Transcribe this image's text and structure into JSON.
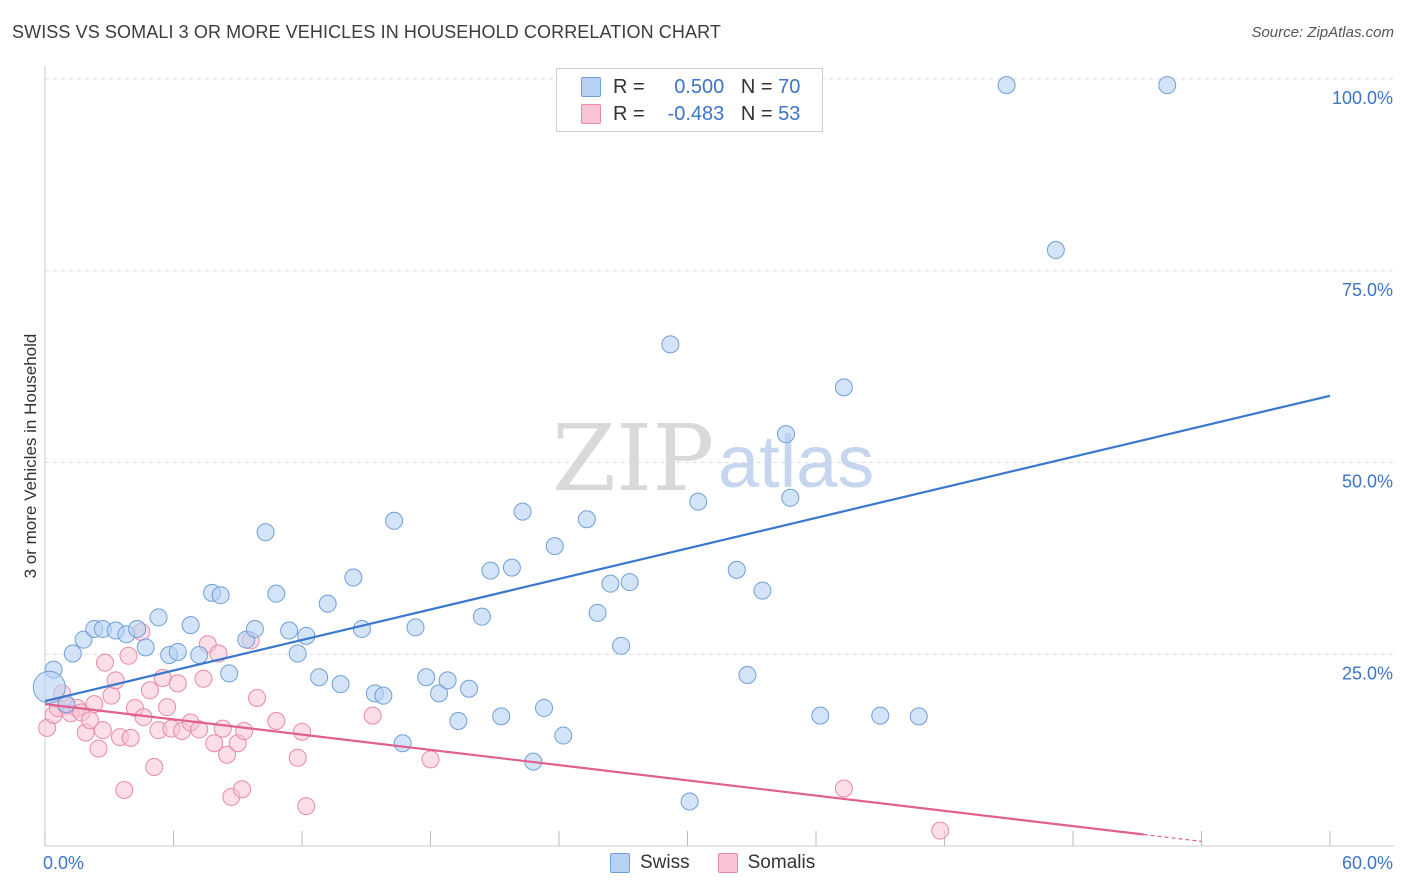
{
  "header": {
    "title": "SWISS VS SOMALI 3 OR MORE VEHICLES IN HOUSEHOLD CORRELATION CHART",
    "source": "Source: ZipAtlas.com"
  },
  "legend": {
    "rows": [
      {
        "r_label": "R =",
        "r_value": "0.500",
        "n_label": "N =",
        "n_value": "70"
      },
      {
        "r_label": "R =",
        "r_value": "-0.483",
        "n_label": "N =",
        "n_value": "53"
      }
    ],
    "bottom": [
      "Swiss",
      "Somalis"
    ]
  },
  "watermark": {
    "zip": "ZIP",
    "atlas": "atlas"
  },
  "colors": {
    "swiss_fill": "#b8d2f3",
    "swiss_stroke": "#6f9fd9",
    "swiss_line": "#3a78cf",
    "somali_fill": "#f8c3d2",
    "somali_stroke": "#e98aa8",
    "somali_line": "#e0608e",
    "tick": "#3b74c9",
    "grid": "#dddddd"
  },
  "chart_data": {
    "type": "scatter",
    "title": "SWISS VS SOMALI 3 OR MORE VEHICLES IN HOUSEHOLD CORRELATION CHART",
    "xlabel": "",
    "ylabel": "3 or more Vehicles in Household",
    "xlim": [
      0,
      60
    ],
    "ylim": [
      0,
      100
    ],
    "x_tick_labels": [
      "0.0%",
      "60.0%"
    ],
    "y_ticks": [
      25,
      50,
      75,
      100
    ],
    "y_tick_labels": [
      "25.0%",
      "50.0%",
      "75.0%",
      "100.0%"
    ],
    "grid": true,
    "legend_placement": "top-center",
    "series": [
      {
        "name": "Swiss",
        "r": 0.5,
        "n": 70,
        "trend": {
          "x": [
            0,
            60
          ],
          "y": [
            18.9,
            58.7
          ]
        },
        "points": [
          [
            0.4,
            23.0
          ],
          [
            1.3,
            25.1
          ],
          [
            1.8,
            26.9
          ],
          [
            2.3,
            28.3
          ],
          [
            2.7,
            28.3
          ],
          [
            3.3,
            28.1
          ],
          [
            3.8,
            27.6
          ],
          [
            4.3,
            28.3
          ],
          [
            4.7,
            25.9
          ],
          [
            5.3,
            29.8
          ],
          [
            5.8,
            24.9
          ],
          [
            6.2,
            25.3
          ],
          [
            6.8,
            28.8
          ],
          [
            7.2,
            24.9
          ],
          [
            7.8,
            33.0
          ],
          [
            8.2,
            32.7
          ],
          [
            8.6,
            22.5
          ],
          [
            9.4,
            26.9
          ],
          [
            9.8,
            28.3
          ],
          [
            10.3,
            40.9
          ],
          [
            10.8,
            32.9
          ],
          [
            11.4,
            28.1
          ],
          [
            11.8,
            25.1
          ],
          [
            12.2,
            27.4
          ],
          [
            12.8,
            22.0
          ],
          [
            13.2,
            31.6
          ],
          [
            13.8,
            21.1
          ],
          [
            14.4,
            35.0
          ],
          [
            14.8,
            28.3
          ],
          [
            15.4,
            19.9
          ],
          [
            15.8,
            19.6
          ],
          [
            16.3,
            42.4
          ],
          [
            16.7,
            13.4
          ],
          [
            17.3,
            28.5
          ],
          [
            17.8,
            22.0
          ],
          [
            18.4,
            19.9
          ],
          [
            18.8,
            21.6
          ],
          [
            19.3,
            16.3
          ],
          [
            19.8,
            20.5
          ],
          [
            20.4,
            29.9
          ],
          [
            20.8,
            35.9
          ],
          [
            21.3,
            16.9
          ],
          [
            21.8,
            36.3
          ],
          [
            22.3,
            43.6
          ],
          [
            22.8,
            11.0
          ],
          [
            23.3,
            18.0
          ],
          [
            23.8,
            39.1
          ],
          [
            24.2,
            14.4
          ],
          [
            25.3,
            42.6
          ],
          [
            25.8,
            30.4
          ],
          [
            26.4,
            34.2
          ],
          [
            26.9,
            26.1
          ],
          [
            27.3,
            34.4
          ],
          [
            29.2,
            65.4
          ],
          [
            30.1,
            5.8
          ],
          [
            30.5,
            44.9
          ],
          [
            32.3,
            36.0
          ],
          [
            32.8,
            22.3
          ],
          [
            33.5,
            33.3
          ],
          [
            34.6,
            53.7
          ],
          [
            34.8,
            45.4
          ],
          [
            36.2,
            17.0
          ],
          [
            37.3,
            59.8
          ],
          [
            39.0,
            17.0
          ],
          [
            40.8,
            16.9
          ],
          [
            44.9,
            99.2
          ],
          [
            47.2,
            77.7
          ],
          [
            52.4,
            99.2
          ],
          [
            0.2,
            20.7
          ],
          [
            1.0,
            18.5
          ]
        ]
      },
      {
        "name": "Somalis",
        "r": -0.483,
        "n": 53,
        "trend": {
          "x": [
            0,
            51.3
          ],
          "y": [
            18.5,
            1.5
          ]
        },
        "trend_extension": {
          "x": [
            51.3,
            54.0
          ],
          "y": [
            1.5,
            0.6
          ]
        },
        "points": [
          [
            0.1,
            15.4
          ],
          [
            0.4,
            17.1
          ],
          [
            0.6,
            18.0
          ],
          [
            0.8,
            19.9
          ],
          [
            1.0,
            18.3
          ],
          [
            1.2,
            17.3
          ],
          [
            1.5,
            18.0
          ],
          [
            1.7,
            17.4
          ],
          [
            1.9,
            14.8
          ],
          [
            2.1,
            16.4
          ],
          [
            2.3,
            18.5
          ],
          [
            2.5,
            12.7
          ],
          [
            2.7,
            15.1
          ],
          [
            2.8,
            23.9
          ],
          [
            3.1,
            19.6
          ],
          [
            3.3,
            21.6
          ],
          [
            3.5,
            14.2
          ],
          [
            3.7,
            7.3
          ],
          [
            3.9,
            24.8
          ],
          [
            4.0,
            14.1
          ],
          [
            4.2,
            18.0
          ],
          [
            4.5,
            27.9
          ],
          [
            4.6,
            16.8
          ],
          [
            4.9,
            20.3
          ],
          [
            5.1,
            10.3
          ],
          [
            5.3,
            15.1
          ],
          [
            5.5,
            21.9
          ],
          [
            5.7,
            18.1
          ],
          [
            5.9,
            15.3
          ],
          [
            6.2,
            21.2
          ],
          [
            6.4,
            15.0
          ],
          [
            6.8,
            16.1
          ],
          [
            7.2,
            15.2
          ],
          [
            7.4,
            21.8
          ],
          [
            7.6,
            26.3
          ],
          [
            7.9,
            13.4
          ],
          [
            8.1,
            25.1
          ],
          [
            8.3,
            15.3
          ],
          [
            8.5,
            11.9
          ],
          [
            8.7,
            6.4
          ],
          [
            9.0,
            13.4
          ],
          [
            9.2,
            7.4
          ],
          [
            9.3,
            15.0
          ],
          [
            9.6,
            26.8
          ],
          [
            9.9,
            19.3
          ],
          [
            10.8,
            16.3
          ],
          [
            11.8,
            11.5
          ],
          [
            12.0,
            14.9
          ],
          [
            12.2,
            5.2
          ],
          [
            15.3,
            17.0
          ],
          [
            18.0,
            11.3
          ],
          [
            37.3,
            7.5
          ],
          [
            41.8,
            2.0
          ]
        ]
      }
    ]
  }
}
